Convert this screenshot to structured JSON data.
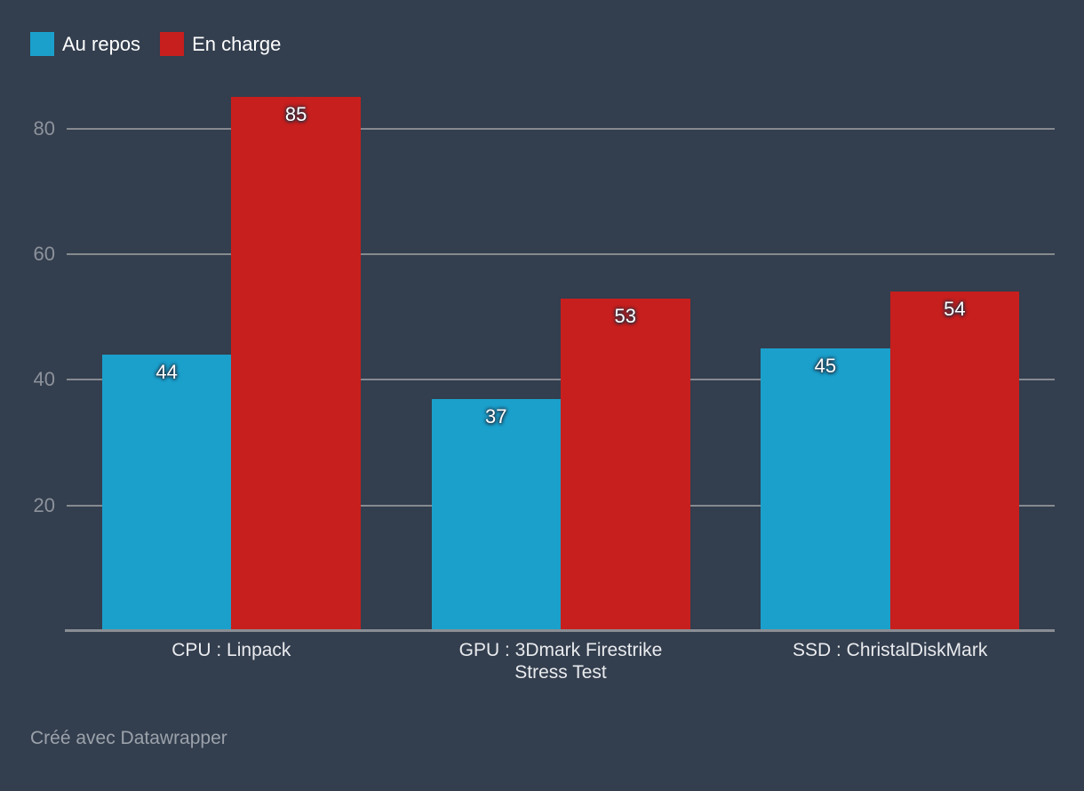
{
  "chart_data": {
    "type": "bar",
    "categories": [
      "CPU : Linpack",
      "GPU : 3Dmark Firestrike\nStress Test",
      "SSD : ChristalDiskMark"
    ],
    "series": [
      {
        "name": "Au repos",
        "color": "#1BA0CC",
        "values": [
          44,
          37,
          45
        ]
      },
      {
        "name": "En charge",
        "color": "#C71F1E",
        "values": [
          85,
          53,
          54
        ]
      }
    ],
    "value_labels": [
      [
        "44",
        "37",
        "45"
      ],
      [
        "85",
        "53",
        "54"
      ]
    ],
    "yticks": [
      "20",
      "40",
      "60",
      "80"
    ],
    "ylim": [
      0,
      88
    ],
    "grid": true,
    "legend_position": "top-left",
    "background_color": "#333E4E",
    "footer": "Créé avec Datawrapper"
  }
}
